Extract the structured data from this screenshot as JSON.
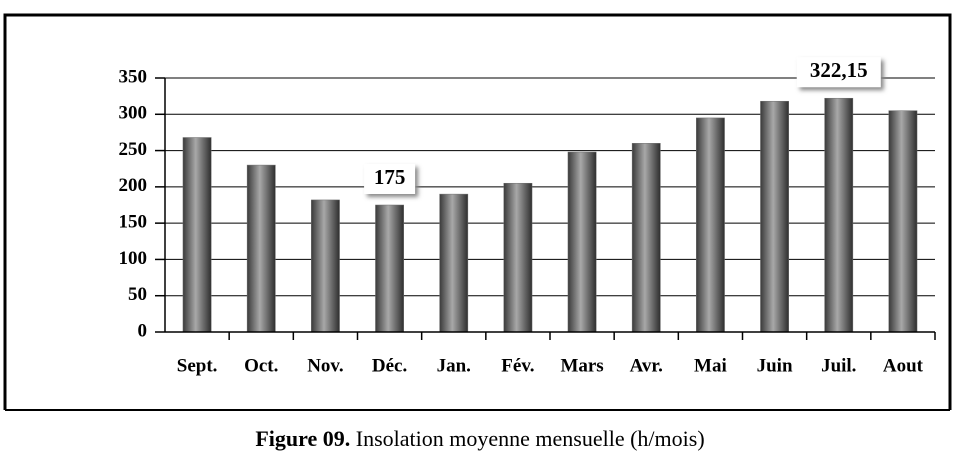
{
  "chart_data": {
    "type": "bar",
    "figure_label": "Figure 09.",
    "caption": "Insolation moyenne mensuelle (h/mois)",
    "categories": [
      "Sept.",
      "Oct.",
      "Nov.",
      "Déc.",
      "Jan.",
      "Fév.",
      "Mars",
      "Avr.",
      "Mai",
      "Juin",
      "Juil.",
      "Aout"
    ],
    "values": [
      268,
      230,
      182,
      175,
      190,
      205,
      248,
      260,
      295,
      318,
      322.15,
      305
    ],
    "value_labels": [
      null,
      null,
      null,
      "175",
      null,
      null,
      null,
      null,
      null,
      null,
      "322,15",
      null
    ],
    "color": "#6e6e6e",
    "ylim": [
      0,
      350
    ],
    "yticks": [
      0,
      50,
      100,
      150,
      200,
      250,
      300,
      350
    ],
    "grid": true
  }
}
